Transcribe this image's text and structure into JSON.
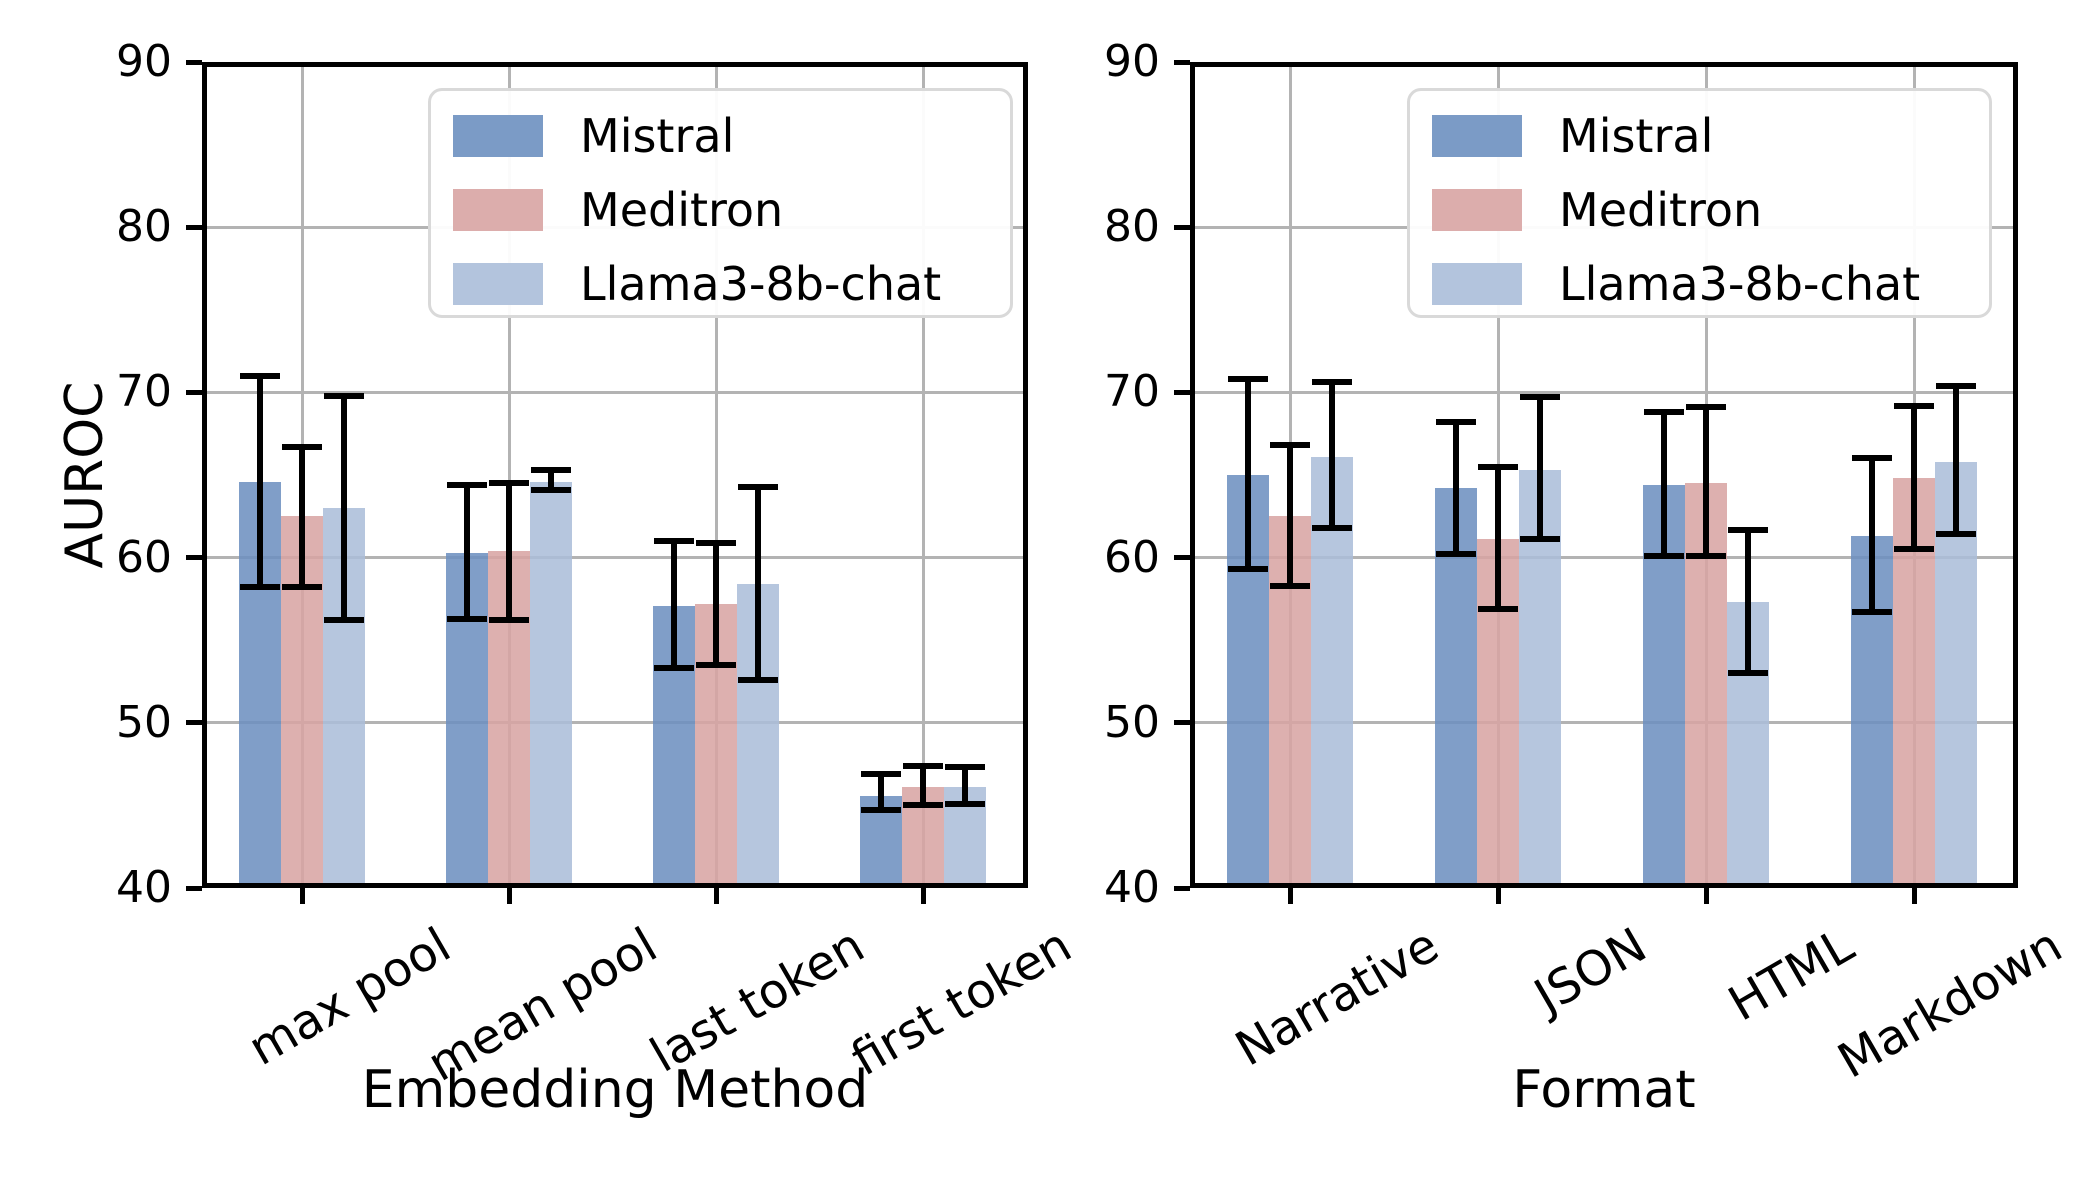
{
  "figure": {
    "background": "#ffffff"
  },
  "chart_data": [
    {
      "type": "bar",
      "title": "",
      "xlabel": "Embedding Method",
      "ylabel": "AUROC",
      "ylim": [
        40,
        90
      ],
      "yticks": [
        40,
        50,
        60,
        70,
        80,
        90
      ],
      "grid": true,
      "legend_position": "upper right",
      "categories": [
        "max pool",
        "mean pool",
        "last token",
        "first token"
      ],
      "series": [
        {
          "name": "Mistral",
          "color": "#6d90c0",
          "values": [
            64.6,
            60.3,
            57.1,
            45.6
          ],
          "err_lo": [
            58.2,
            56.3,
            53.3,
            44.7
          ],
          "err_hi": [
            71.0,
            64.4,
            61.0,
            46.9
          ]
        },
        {
          "name": "Meditron",
          "color": "#d8a4a3",
          "values": [
            62.5,
            60.4,
            57.2,
            46.1
          ],
          "err_lo": [
            58.2,
            56.2,
            53.5,
            45.0
          ],
          "err_hi": [
            66.7,
            64.5,
            60.9,
            47.4
          ]
        },
        {
          "name": "Llama3-8b-chat",
          "color": "#abbed9",
          "values": [
            63.0,
            64.6,
            58.4,
            46.1
          ],
          "err_lo": [
            56.2,
            64.1,
            52.6,
            45.1
          ],
          "err_hi": [
            69.8,
            65.3,
            64.3,
            47.3
          ]
        }
      ]
    },
    {
      "type": "bar",
      "title": "",
      "xlabel": "Format",
      "ylabel": "",
      "ylim": [
        40,
        90
      ],
      "yticks": [
        40,
        50,
        60,
        70,
        80,
        90
      ],
      "grid": true,
      "legend_position": "upper right",
      "categories": [
        "Narrative",
        "JSON",
        "HTML",
        "Markdown"
      ],
      "series": [
        {
          "name": "Mistral",
          "color": "#6d90c0",
          "values": [
            65.0,
            64.2,
            64.4,
            61.3
          ],
          "err_lo": [
            59.3,
            60.2,
            60.1,
            56.7
          ],
          "err_hi": [
            70.8,
            68.2,
            68.8,
            66.0
          ]
        },
        {
          "name": "Meditron",
          "color": "#d8a4a3",
          "values": [
            62.5,
            61.1,
            64.5,
            64.8
          ],
          "err_lo": [
            58.3,
            56.9,
            60.1,
            60.5
          ],
          "err_hi": [
            66.8,
            65.5,
            69.1,
            69.2
          ]
        },
        {
          "name": "Llama3-8b-chat",
          "color": "#abbed9",
          "values": [
            66.1,
            65.3,
            57.3,
            65.8
          ],
          "err_lo": [
            61.8,
            61.1,
            53.0,
            61.4
          ],
          "err_hi": [
            70.6,
            69.7,
            61.7,
            70.4
          ]
        }
      ]
    }
  ]
}
